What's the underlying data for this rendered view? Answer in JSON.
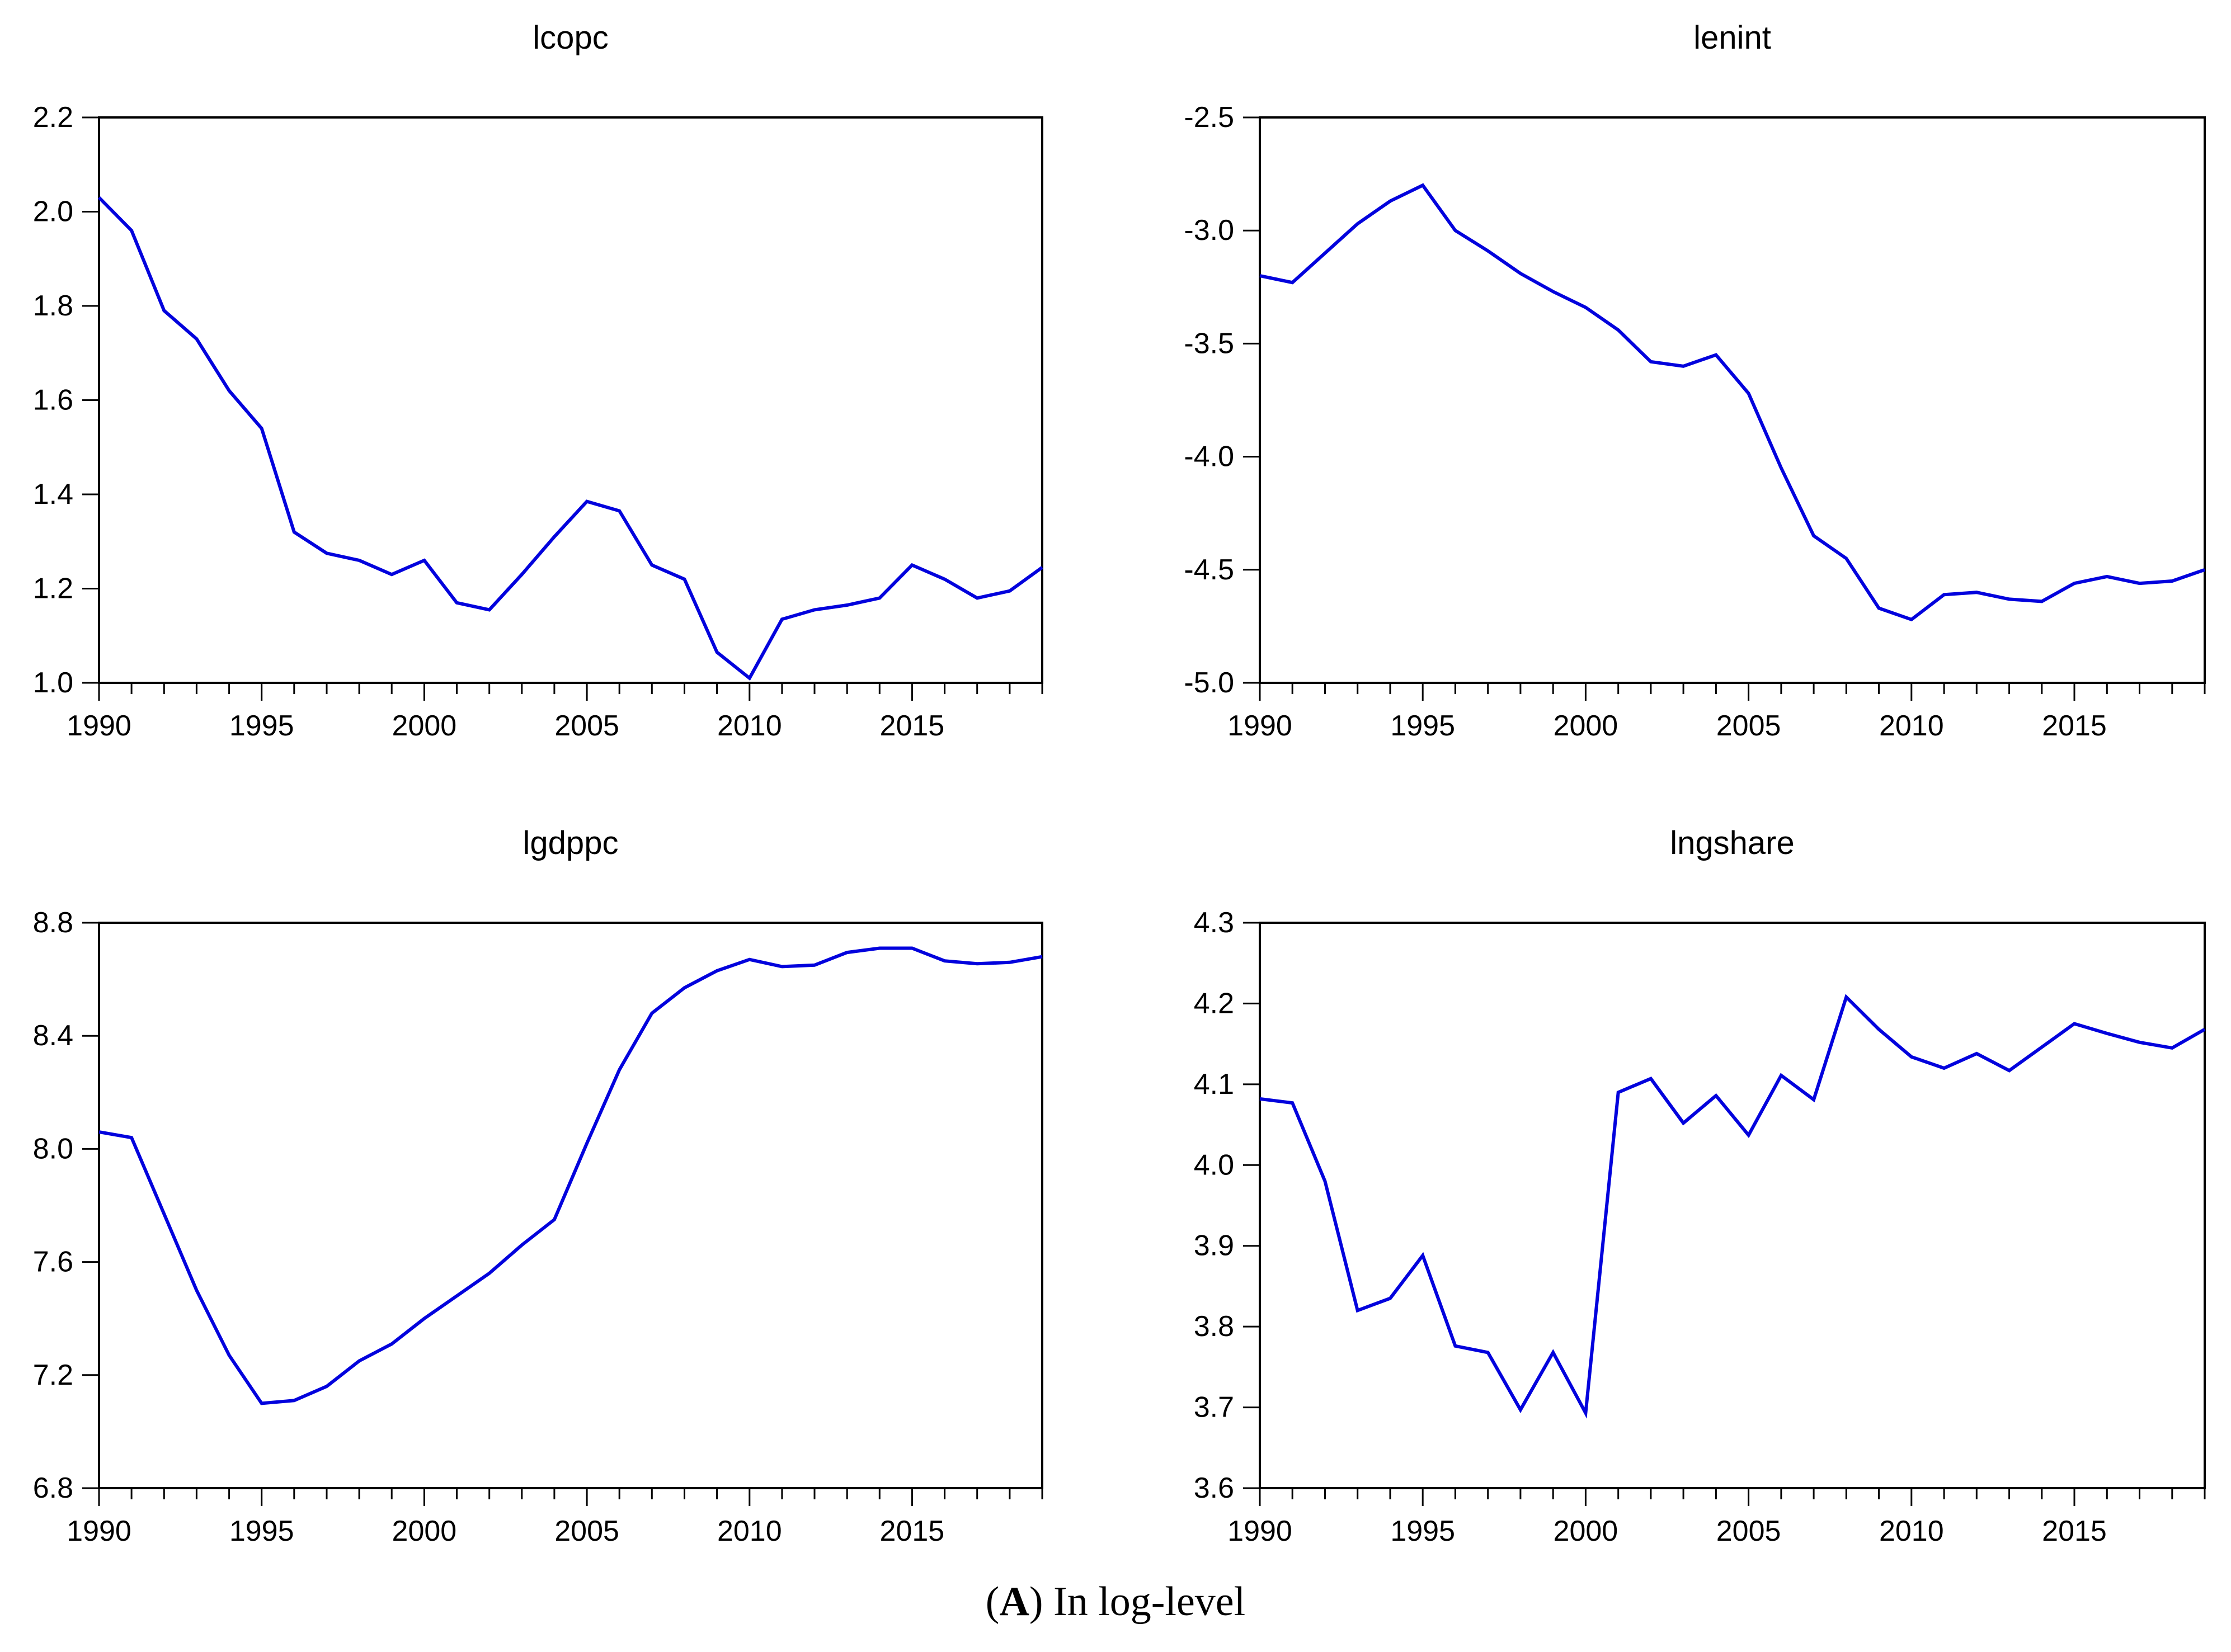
{
  "caption": {
    "open": "(",
    "letter": "A",
    "rest": ") In log-level"
  },
  "line_color": "#0202dd",
  "years": [
    1990,
    1991,
    1992,
    1993,
    1994,
    1995,
    1996,
    1997,
    1998,
    1999,
    2000,
    2001,
    2002,
    2003,
    2004,
    2005,
    2006,
    2007,
    2008,
    2009,
    2010,
    2011,
    2012,
    2013,
    2014,
    2015,
    2016,
    2017,
    2018,
    2019
  ],
  "chart_data": [
    {
      "type": "line",
      "title": "lcopc",
      "position": "top-left",
      "xlabel": "",
      "ylabel": "",
      "xtick_labels": [
        1990,
        1995,
        2000,
        2005,
        2010,
        2015
      ],
      "yticks": [
        1.0,
        1.2,
        1.4,
        1.6,
        1.8,
        2.0,
        2.2
      ],
      "ylim": [
        1.0,
        2.2
      ],
      "grid": false,
      "values": [
        2.03,
        1.96,
        1.79,
        1.73,
        1.62,
        1.54,
        1.32,
        1.275,
        1.26,
        1.23,
        1.26,
        1.17,
        1.155,
        1.23,
        1.31,
        1.385,
        1.365,
        1.25,
        1.22,
        1.065,
        1.01,
        1.135,
        1.155,
        1.165,
        1.18,
        1.25,
        1.22,
        1.18,
        1.195,
        1.245
      ]
    },
    {
      "type": "line",
      "title": "lenint",
      "position": "top-right",
      "xlabel": "",
      "ylabel": "",
      "xtick_labels": [
        1990,
        1995,
        2000,
        2005,
        2010,
        2015
      ],
      "yticks": [
        -5.0,
        -4.5,
        -4.0,
        -3.5,
        -3.0,
        -2.5
      ],
      "ylim": [
        -5.0,
        -2.5
      ],
      "grid": false,
      "values": [
        -3.2,
        -3.23,
        -3.1,
        -2.97,
        -2.87,
        -2.8,
        -3.0,
        -3.09,
        -3.19,
        -3.27,
        -3.34,
        -3.44,
        -3.58,
        -3.6,
        -3.55,
        -3.72,
        -4.05,
        -4.35,
        -4.45,
        -4.67,
        -4.72,
        -4.61,
        -4.6,
        -4.63,
        -4.64,
        -4.56,
        -4.53,
        -4.56,
        -4.55,
        -4.5
      ]
    },
    {
      "type": "line",
      "title": "lgdppc",
      "position": "bottom-left",
      "xlabel": "",
      "ylabel": "",
      "xtick_labels": [
        1990,
        1995,
        2000,
        2005,
        2010,
        2015
      ],
      "yticks": [
        6.8,
        7.2,
        7.6,
        8.0,
        8.4,
        8.8
      ],
      "ylim": [
        6.8,
        8.8
      ],
      "grid": false,
      "values": [
        8.06,
        8.04,
        7.77,
        7.5,
        7.27,
        7.1,
        7.11,
        7.16,
        7.25,
        7.31,
        7.4,
        7.48,
        7.56,
        7.66,
        7.75,
        8.02,
        8.28,
        8.48,
        8.57,
        8.63,
        8.67,
        8.645,
        8.65,
        8.695,
        8.71,
        8.71,
        8.665,
        8.655,
        8.66,
        8.68
      ]
    },
    {
      "type": "line",
      "title": "lngshare",
      "position": "bottom-right",
      "xlabel": "",
      "ylabel": "",
      "xtick_labels": [
        1990,
        1995,
        2000,
        2005,
        2010,
        2015
      ],
      "yticks": [
        3.6,
        3.7,
        3.8,
        3.9,
        4.0,
        4.1,
        4.2,
        4.3
      ],
      "ylim": [
        3.6,
        4.3
      ],
      "grid": false,
      "values": [
        4.082,
        4.077,
        3.98,
        3.82,
        3.835,
        3.888,
        3.776,
        3.768,
        3.697,
        3.768,
        3.693,
        4.09,
        4.107,
        4.052,
        4.086,
        4.037,
        4.111,
        4.081,
        4.208,
        4.168,
        4.134,
        4.12,
        4.138,
        4.117,
        4.146,
        4.175,
        4.163,
        4.152,
        4.145,
        4.168
      ]
    }
  ]
}
